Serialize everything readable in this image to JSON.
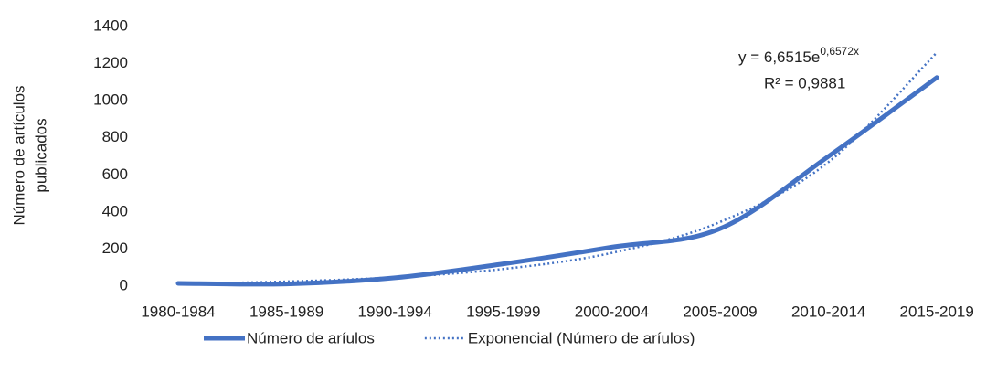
{
  "chart_data": {
    "type": "line",
    "y_label": [
      "Número de artículos",
      "publicados"
    ],
    "categories": [
      "1980-1984",
      "1985-1989",
      "1990-1994",
      "1995-1999",
      "2000-2004",
      "2005-2009",
      "2010-2014",
      "2015-2019"
    ],
    "series": [
      {
        "name": "Número de aríulos",
        "color": "#4472c4",
        "style": "solid",
        "values": [
          15,
          12,
          45,
          120,
          210,
          310,
          700,
          1125
        ]
      },
      {
        "name": "Exponencial (Número de aríulos)",
        "color": "#4472c4",
        "style": "dotted",
        "values": [
          12.8,
          24.8,
          47.9,
          92.6,
          179,
          346,
          669,
          1260
        ]
      }
    ],
    "annotations": {
      "equation": "y = 6,6515e",
      "exponent": "0,6572x",
      "r2": "R² = 0,9881"
    },
    "ylim": [
      0,
      1400
    ],
    "yticks": [
      0,
      200,
      400,
      600,
      800,
      1000,
      1200,
      1400
    ]
  }
}
